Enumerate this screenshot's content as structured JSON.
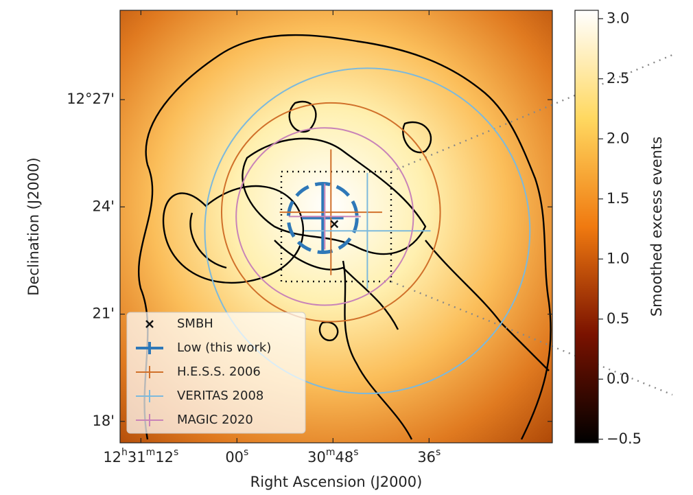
{
  "chart_data": {
    "type": "skymap",
    "x_label": "Right Ascension (J2000)",
    "y_label": "Declination (J2000)",
    "xlim": [
      74.6,
      20.6
    ],
    "ylim": [
      17.4,
      29.5
    ],
    "xticks": [
      {
        "value": 72,
        "label": "12h31m12s"
      },
      {
        "value": 60,
        "label": "00s"
      },
      {
        "value": 48,
        "label": "30m48s"
      },
      {
        "value": 36,
        "label": "36s"
      }
    ],
    "yticks": [
      {
        "value": 27,
        "label": "12°27'"
      },
      {
        "value": 24,
        "label": "24'"
      },
      {
        "value": 21,
        "label": "21'"
      },
      {
        "value": 18,
        "label": "18'"
      }
    ],
    "colorbar": {
      "label": "Smoothed excess events",
      "clim": [
        -0.53,
        3.07
      ],
      "ticks": [
        {
          "value": -0.5,
          "label": "−0.5"
        },
        {
          "value": 0,
          "label": "0.0"
        },
        0.5,
        {
          "value": 1,
          "label": "1.0"
        },
        1.5,
        {
          "value": 2,
          "label": "2.0"
        },
        2.5,
        {
          "value": 3,
          "label": "3.0"
        }
      ]
    },
    "series": [
      {
        "name": "SMBH",
        "color": "#111111",
        "marker": "x",
        "x": 47.83,
        "y": 23.52
      },
      {
        "name": "Low (this work)",
        "color": "#2e78b8",
        "marker": "cross",
        "linestyle": "dashed",
        "x": 49.29,
        "y": 23.69,
        "xerr": 2.6,
        "yerr": 0.99,
        "radius": 0.96
      },
      {
        "name": "H.E.S.S. 2006",
        "color": "#d0702a",
        "marker": "cross",
        "linestyle": "solid",
        "x": 48.26,
        "y": 23.85,
        "xerr": 6.4,
        "yerr": 1.76,
        "radius": 3.06
      },
      {
        "name": "VERITAS 2008",
        "color": "#7cb9dc",
        "marker": "cross",
        "linestyle": "solid",
        "x": 43.71,
        "y": 23.33,
        "xerr": 7.9,
        "yerr": 1.62,
        "radius": 4.55
      },
      {
        "name": "MAGIC 2020",
        "color": "#c883b8",
        "marker": "cross",
        "linestyle": "solid",
        "x": 49.03,
        "y": 23.73,
        "xerr": 4.5,
        "yerr": 0.92,
        "radius": 2.48
      }
    ]
  }
}
